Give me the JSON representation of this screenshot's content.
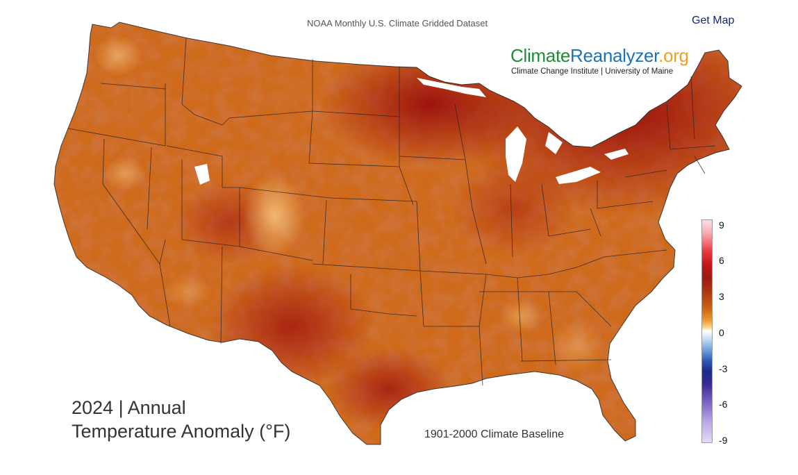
{
  "header": {
    "source": "NOAA Monthly U.S. Climate Gridded Dataset",
    "get_map": "Get Map"
  },
  "brand": {
    "part1": "Climate",
    "part2": "Reanalyzer",
    "part3": ".org",
    "subtitle": "Climate Change Institute | University of Maine",
    "colors": {
      "green": "#1f8b3a",
      "blue": "#1a73b8",
      "orange": "#f0a020"
    }
  },
  "map": {
    "region": "Contiguous United States",
    "variable": "Annual Temperature Anomaly",
    "title_line1": "2024 | Annual",
    "title_line2": "Temperature Anomaly (°F)",
    "baseline": "1901-2000 Climate Baseline",
    "palette": {
      "warm_low": "#e58a2a",
      "warm_mid": "#c85a12",
      "warm_high": "#a81d10",
      "hot": "#8f0c0a"
    }
  },
  "legend": {
    "ticks": [
      "9",
      "6",
      "3",
      "0",
      "-3",
      "-6",
      "-9"
    ],
    "range": [
      -9,
      9
    ]
  }
}
